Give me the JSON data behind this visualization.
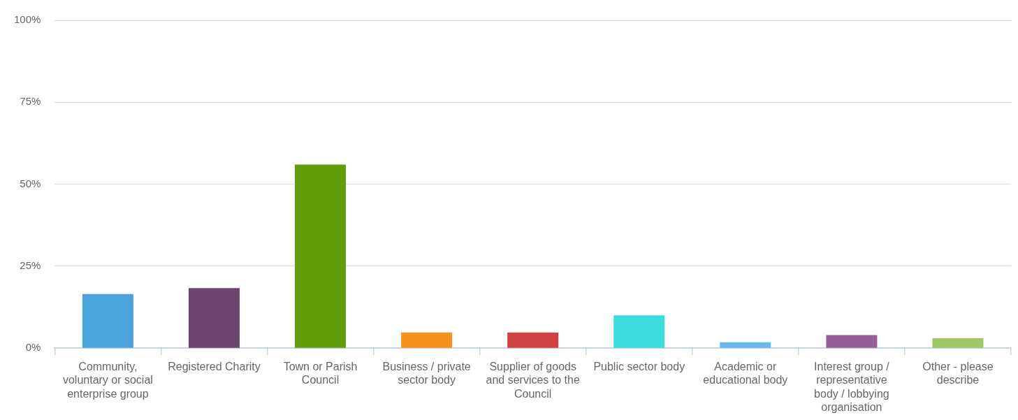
{
  "chart_data": {
    "type": "bar",
    "categories": [
      "Community, voluntary or social enterprise group",
      "Registered Charity",
      "Town or Parish Council",
      "Business / private sector body",
      "Supplier of goods and services to the Council",
      "Public sector body",
      "Academic or educational body",
      "Interest group / representative body / lobbying organisation",
      "Other - please describe"
    ],
    "values": [
      16.5,
      18.3,
      56.0,
      4.8,
      4.8,
      10.0,
      1.8,
      4.0,
      3.0
    ],
    "colors": [
      "#4aa3da",
      "#6c4571",
      "#629d0b",
      "#f5921f",
      "#d14343",
      "#3adcdc",
      "#67b8ec",
      "#955d9b",
      "#a0c764"
    ],
    "ylim": [
      0,
      100
    ],
    "yticks": [
      {
        "value": 0,
        "label": "0%"
      },
      {
        "value": 25,
        "label": "25%"
      },
      {
        "value": 50,
        "label": "50%"
      },
      {
        "value": 75,
        "label": "75%"
      },
      {
        "value": 100,
        "label": "100%"
      }
    ],
    "grid": "y",
    "legend": false
  }
}
